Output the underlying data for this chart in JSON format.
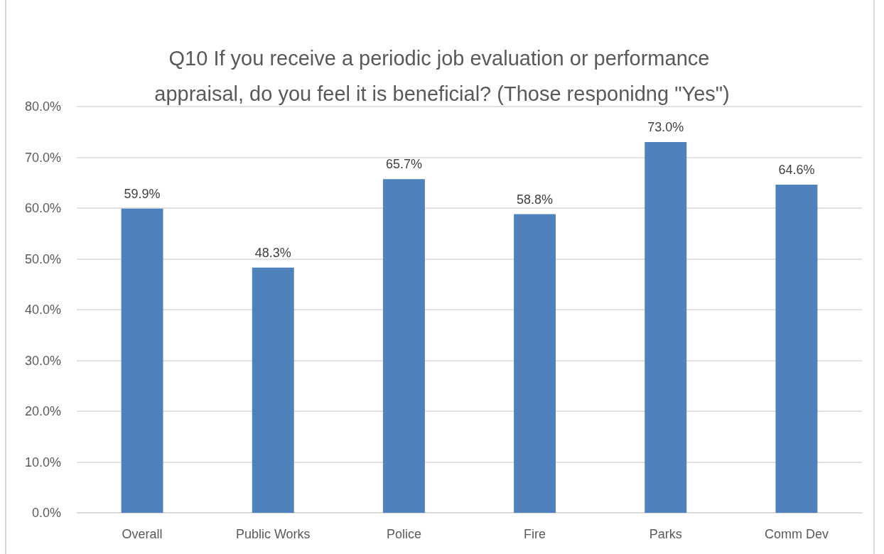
{
  "chart_data": {
    "type": "bar",
    "title": "Q10 If you receive a periodic job evaluation or performance appraisal, do you feel it is beneficial? (Those responidng \"Yes\")",
    "categories": [
      "Overall",
      "Public Works",
      "Police",
      "Fire",
      "Parks",
      "Comm Dev"
    ],
    "values": [
      59.9,
      48.3,
      65.7,
      58.8,
      73.0,
      64.6
    ],
    "value_labels": [
      "59.9%",
      "48.3%",
      "65.7%",
      "58.8%",
      "73.0%",
      "64.6%"
    ],
    "color": "#4f81bd",
    "ylim": [
      0,
      80
    ],
    "yticks": [
      {
        "value": 0,
        "label": "0.0%"
      },
      {
        "value": 10,
        "label": "10.0%"
      },
      {
        "value": 20,
        "label": "20.0%"
      },
      {
        "value": 30,
        "label": "30.0%"
      },
      {
        "value": 40,
        "label": "40.0%"
      },
      {
        "value": 50,
        "label": "50.0%"
      },
      {
        "value": 60,
        "label": "60.0%"
      },
      {
        "value": 70,
        "label": "70.0%"
      },
      {
        "value": 80,
        "label": "80.0%"
      }
    ],
    "grid": "y"
  }
}
